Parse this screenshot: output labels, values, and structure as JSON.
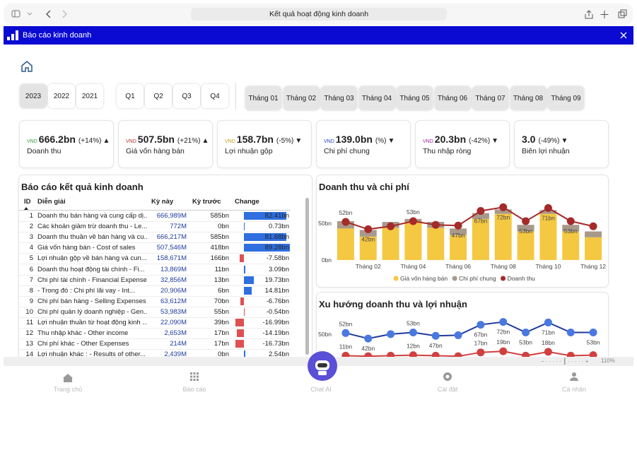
{
  "browser": {
    "address": "Kết quả hoạt động kinh doanh",
    "zoom": "110%"
  },
  "app": {
    "title": "Báo cáo kinh doanh"
  },
  "filters": {
    "years": [
      "2023",
      "2022",
      "2021"
    ],
    "quarters": [
      "Q1",
      "Q2",
      "Q3",
      "Q4"
    ],
    "months": [
      "Tháng 01",
      "Tháng 02",
      "Tháng 03",
      "Tháng 04",
      "Tháng 05",
      "Tháng 06",
      "Tháng 07",
      "Tháng 08",
      "Tháng 09"
    ]
  },
  "kpis": [
    {
      "currency": "VND",
      "value": "666.2bn",
      "change": "(+14%)",
      "arrow": "▲",
      "label": "Doanh thu",
      "color": "#2e9e3e"
    },
    {
      "currency": "VND",
      "value": "507.5bn",
      "change": "(+21%)",
      "arrow": "▲",
      "label": "Giá vốn hàng bán",
      "color": "#b0362a"
    },
    {
      "currency": "VND",
      "value": "158.7bn",
      "change": "(-5%)",
      "arrow": "▼",
      "label": "Lợi nhuận gộp",
      "color": "#c9a227"
    },
    {
      "currency": "VND",
      "value": "139.0bn",
      "change": "(%)",
      "arrow": "▼",
      "label": "Chi phí chung",
      "color": "#1f3fbf"
    },
    {
      "currency": "VND",
      "value": "20.3bn",
      "change": "(-42%)",
      "arrow": "▼",
      "label": "Thu nhập ròng",
      "color": "#a020a0"
    },
    {
      "value": "3.0",
      "change": "(-49%)",
      "arrow": "▼",
      "label": "Biên lợi nhuận",
      "color": "#2aa59a"
    }
  ],
  "table": {
    "title": "Báo cáo kết quả kinh doanh",
    "headers": [
      "ID",
      "Diễn giải",
      "Kỳ này",
      "Kỳ trước",
      "Change"
    ],
    "rows": [
      {
        "id": 1,
        "item": "Doanh thu bán hàng và cung cấp dị...",
        "current": "666,989M",
        "previous": "585bn",
        "change": 82.41,
        "change_label": "82.41bn"
      },
      {
        "id": 2,
        "item": "Các khoản giảm trừ doanh thu - Le...",
        "current": "772M",
        "previous": "0bn",
        "change": 0.73,
        "change_label": "0.73bn"
      },
      {
        "id": 3,
        "item": "Doanh thu thuần về bán hàng và cu...",
        "current": "666,217M",
        "previous": "585bn",
        "change": 81.68,
        "change_label": "81.68bn"
      },
      {
        "id": 4,
        "item": "Giá vốn hàng bán - Cost of sales",
        "current": "507,546M",
        "previous": "418bn",
        "change": 89.28,
        "change_label": "89.28bn"
      },
      {
        "id": 5,
        "item": "Lợi nhuận gộp về bán hàng và cun...",
        "current": "158,671M",
        "previous": "166bn",
        "change": -7.58,
        "change_label": "-7.58bn"
      },
      {
        "id": 6,
        "item": "Doanh thu hoạt động tài chính - Fi...",
        "current": "13,869M",
        "previous": "11bn",
        "change": 3.09,
        "change_label": "3.09bn"
      },
      {
        "id": 7,
        "item": "Chi phí tài chính - Financial Expenses",
        "current": "32,856M",
        "previous": "13bn",
        "change": 19.73,
        "change_label": "19.73bn"
      },
      {
        "id": 8,
        "item": "  - Trong đó : Chi phí lãi vay - Int...",
        "current": "20,906M",
        "previous": "6bn",
        "change": 14.81,
        "change_label": "14.81bn"
      },
      {
        "id": 9,
        "item": "Chi phí bán hàng - Selling Expenses",
        "current": "63,612M",
        "previous": "70bn",
        "change": -6.76,
        "change_label": "-6.76bn"
      },
      {
        "id": 10,
        "item": "Chi phí quản lý doanh nghiệp - Gen...",
        "current": "53,983M",
        "previous": "55bn",
        "change": -0.54,
        "change_label": "-0.54bn"
      },
      {
        "id": 11,
        "item": "Lợi nhuận thuần từ hoạt động kinh ...",
        "current": "22,090M",
        "previous": "39bn",
        "change": -16.99,
        "change_label": "-16.99bn"
      },
      {
        "id": 12,
        "item": "Thu nhập khác - Other income",
        "current": "2,653M",
        "previous": "17bn",
        "change": -14.19,
        "change_label": "-14.19bn"
      },
      {
        "id": 13,
        "item": "Chi phí khác - Other Expenses",
        "current": "214M",
        "previous": "17bn",
        "change": -16.73,
        "change_label": "-16.73bn"
      },
      {
        "id": 14,
        "item": "Lợi nhuận khác : - Results of other...",
        "current": "2,439M",
        "previous": "0bn",
        "change": 2.54,
        "change_label": "2.54bn"
      }
    ]
  },
  "chart_data": [
    {
      "type": "bar",
      "title": "Doanh thu và chi phí",
      "stacked": true,
      "categories": [
        null,
        "Tháng 02",
        null,
        "Tháng 04",
        null,
        "Tháng 06",
        null,
        "Tháng 08",
        null,
        "Tháng 10",
        null,
        "Tháng 12"
      ],
      "ylim": [
        0,
        80
      ],
      "yticks": [
        {
          "value": 0,
          "label": "0bn"
        },
        {
          "value": 50,
          "label": "50bn"
        }
      ],
      "legend": "bottom",
      "series": [
        {
          "name": "Giá vốn hàng bán",
          "color": "#f5c842",
          "values": [
            43,
            32,
            44,
            52,
            44,
            34,
            56,
            63,
            39,
            63,
            39,
            31
          ]
        },
        {
          "name": "Chi phí chung",
          "color": "#a8998a",
          "values": [
            10,
            9,
            8,
            4,
            8,
            9,
            8,
            6,
            9,
            5,
            9,
            8
          ]
        },
        {
          "name": "Doanh thu",
          "type": "line",
          "color": "#a52a2a",
          "values": [
            52,
            42,
            46,
            53,
            48,
            47,
            67,
            72,
            53,
            71,
            53,
            46
          ],
          "value_labels": [
            "52bn",
            "42bn",
            null,
            "53bn",
            null,
            "47bn",
            "67bn",
            "72bn",
            "53bn",
            "71bn",
            "53bn",
            null
          ]
        }
      ]
    },
    {
      "type": "line",
      "title": "Xu hướng doanh thu và lợi nhuận",
      "categories": [
        null,
        null,
        null,
        null,
        null,
        null,
        null,
        null,
        null,
        null,
        null,
        null
      ],
      "ylim": [
        0,
        92
      ],
      "yticks": [
        {
          "value": 50,
          "label": "50bn"
        }
      ],
      "series": [
        {
          "color": "#1f3a9e",
          "values": [
            52,
            42,
            50,
            53,
            47,
            48,
            67,
            72,
            53,
            71,
            53,
            53
          ],
          "value_labels": [
            "52bn",
            "42bn",
            null,
            "53bn",
            "47bn",
            null,
            "67bn",
            "72bn",
            "53bn",
            "71bn",
            null,
            "53bn"
          ]
        },
        {
          "color": "#d04040",
          "values": [
            11,
            10,
            11,
            12,
            11,
            10,
            17,
            19,
            11,
            18,
            11,
            12
          ],
          "value_labels": [
            "11bn",
            null,
            null,
            "12bn",
            null,
            null,
            "17bn",
            "19bn",
            null,
            "18bn",
            null,
            null
          ]
        }
      ]
    }
  ],
  "nav": [
    "Trang chủ",
    "Báo cáo",
    "Chat AI",
    "Cài đặt",
    "Cá nhân"
  ]
}
